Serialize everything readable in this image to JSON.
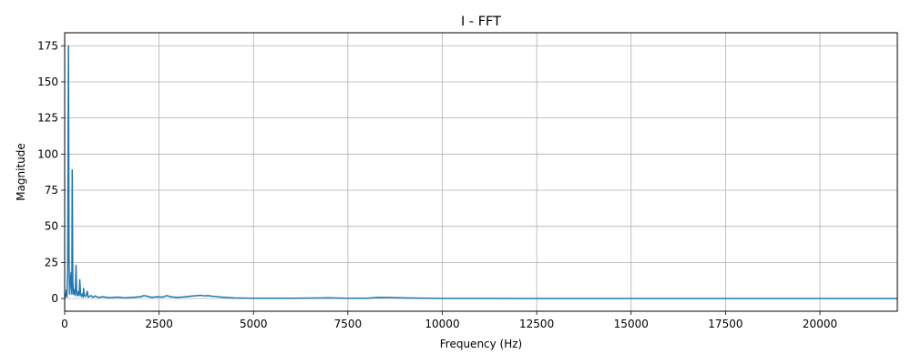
{
  "chart_data": {
    "type": "line",
    "title": "I - FFT",
    "xlabel": "Frequency (Hz)",
    "ylabel": "Magnitude",
    "xlim": [
      0,
      22050
    ],
    "ylim": [
      -8.8,
      184
    ],
    "xticks": [
      0,
      2500,
      5000,
      7500,
      10000,
      12500,
      15000,
      17500,
      20000
    ],
    "yticks": [
      0,
      25,
      50,
      75,
      100,
      125,
      150,
      175
    ],
    "grid": true,
    "legend": "none",
    "series": [
      {
        "color": "#1f77b4",
        "points": [
          [
            0,
            0.5
          ],
          [
            25,
            2
          ],
          [
            50,
            6
          ],
          [
            60,
            1
          ],
          [
            80,
            20
          ],
          [
            100,
            175
          ],
          [
            115,
            30
          ],
          [
            130,
            3
          ],
          [
            150,
            10
          ],
          [
            170,
            18
          ],
          [
            190,
            3
          ],
          [
            200,
            89
          ],
          [
            215,
            12
          ],
          [
            235,
            3
          ],
          [
            260,
            6
          ],
          [
            280,
            2
          ],
          [
            300,
            23
          ],
          [
            315,
            5
          ],
          [
            340,
            2
          ],
          [
            370,
            5
          ],
          [
            385,
            2
          ],
          [
            400,
            13
          ],
          [
            420,
            4
          ],
          [
            440,
            1.5
          ],
          [
            470,
            3
          ],
          [
            490,
            1
          ],
          [
            500,
            7
          ],
          [
            520,
            2
          ],
          [
            560,
            1.5
          ],
          [
            600,
            5
          ],
          [
            620,
            1
          ],
          [
            700,
            2
          ],
          [
            750,
            0.8
          ],
          [
            800,
            1.8
          ],
          [
            900,
            0.7
          ],
          [
            1000,
            1.2
          ],
          [
            1200,
            0.6
          ],
          [
            1400,
            1
          ],
          [
            1600,
            0.5
          ],
          [
            1800,
            0.8
          ],
          [
            2000,
            1.2
          ],
          [
            2100,
            2
          ],
          [
            2200,
            1.5
          ],
          [
            2300,
            0.8
          ],
          [
            2450,
            1.2
          ],
          [
            2600,
            1
          ],
          [
            2700,
            2
          ],
          [
            2800,
            1.3
          ],
          [
            2950,
            0.8
          ],
          [
            3100,
            1
          ],
          [
            3300,
            1.5
          ],
          [
            3500,
            2
          ],
          [
            3600,
            2.2
          ],
          [
            3700,
            1.8
          ],
          [
            3800,
            2
          ],
          [
            3900,
            1.6
          ],
          [
            4000,
            1.4
          ],
          [
            4150,
            1
          ],
          [
            4300,
            0.7
          ],
          [
            4500,
            0.4
          ],
          [
            5000,
            0.2
          ],
          [
            6000,
            0.15
          ],
          [
            6800,
            0.4
          ],
          [
            7000,
            0.5
          ],
          [
            7200,
            0.3
          ],
          [
            7500,
            0.15
          ],
          [
            8000,
            0.2
          ],
          [
            8300,
            0.8
          ],
          [
            8600,
            0.7
          ],
          [
            8900,
            0.5
          ],
          [
            9200,
            0.3
          ],
          [
            10000,
            0.1
          ],
          [
            12000,
            0.05
          ],
          [
            15000,
            0.05
          ],
          [
            18000,
            0.03
          ],
          [
            20000,
            0.03
          ],
          [
            22050,
            0.02
          ]
        ]
      }
    ]
  }
}
